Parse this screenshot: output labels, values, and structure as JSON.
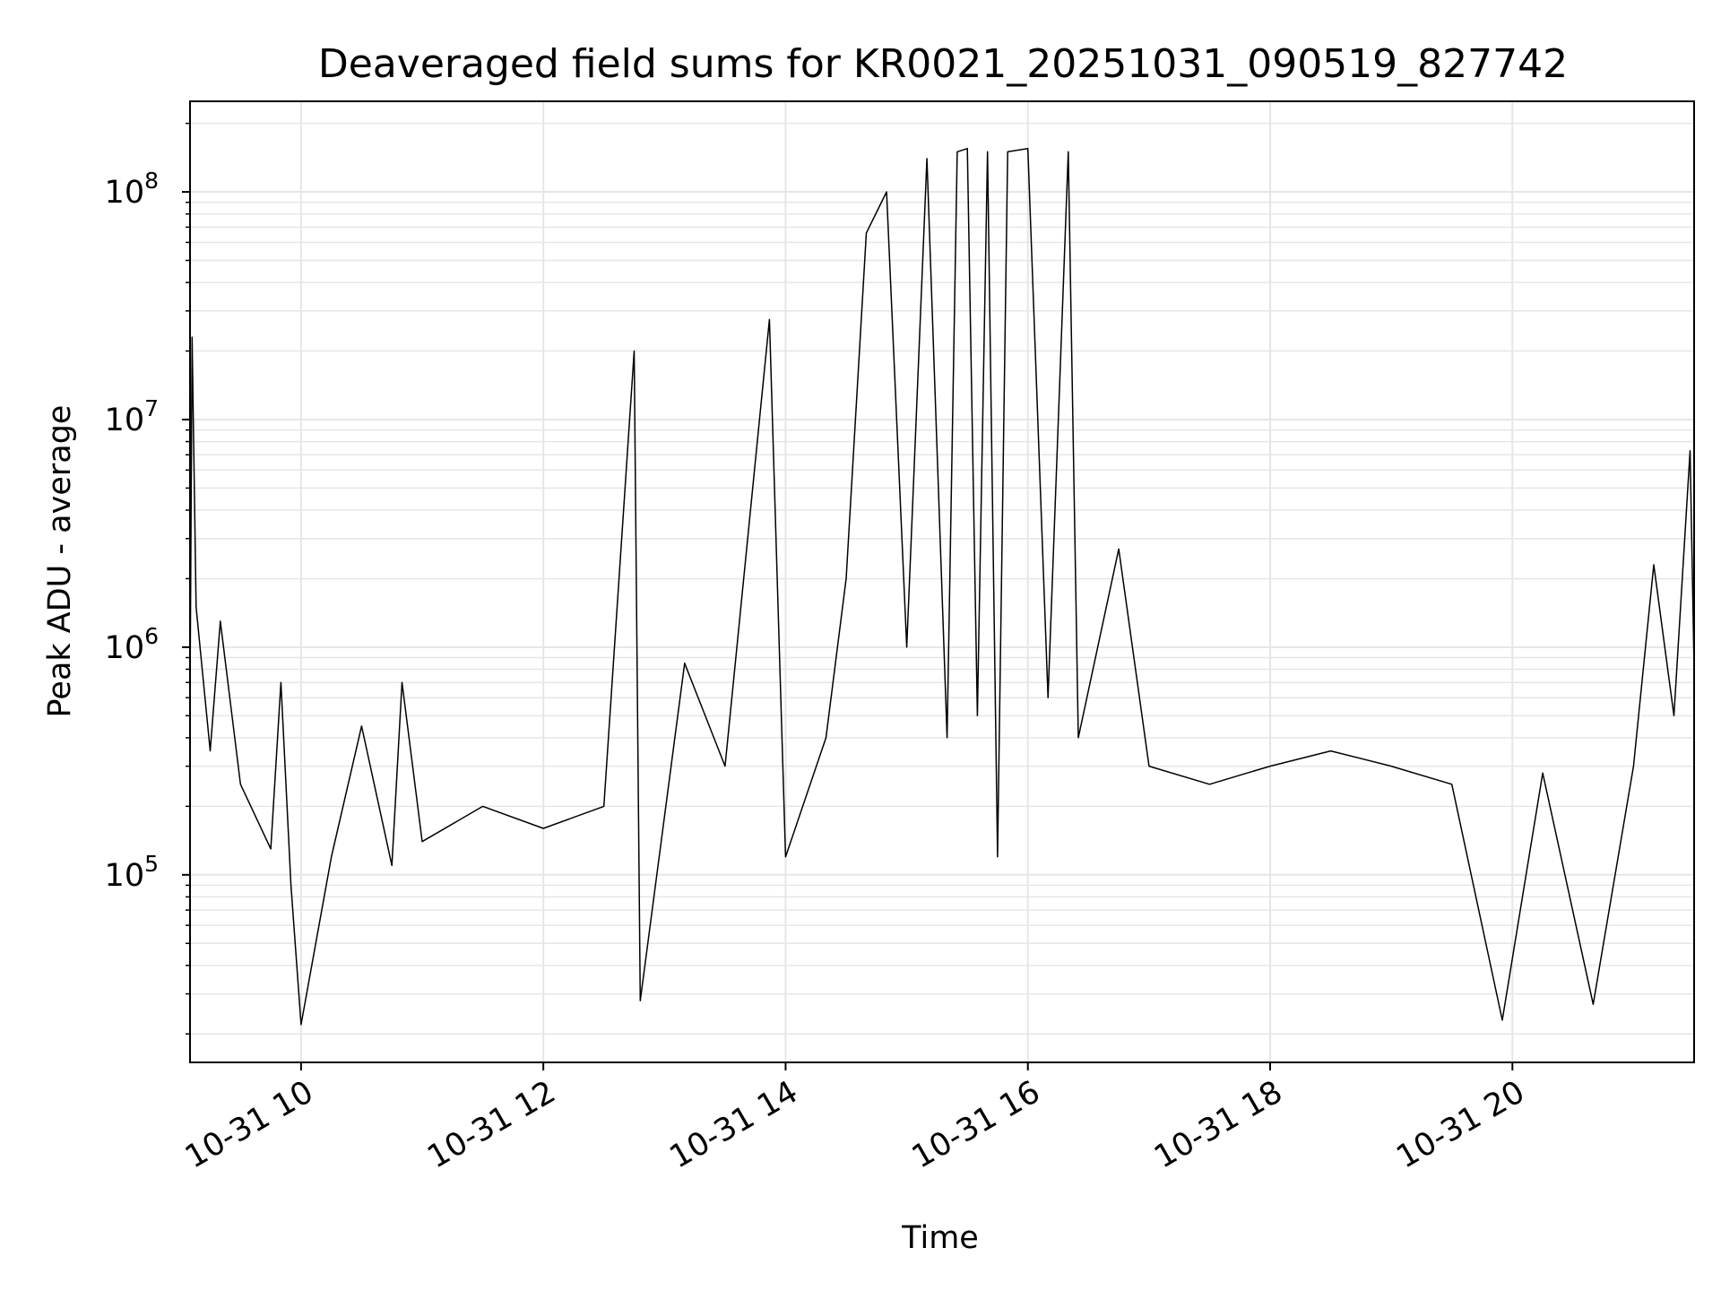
{
  "chart_data": {
    "type": "line",
    "title": "Deaveraged field sums for KR0021_20251031_090519_827742",
    "xlabel": "Time",
    "ylabel": "Peak ADU - average",
    "y_scale": "log",
    "grid": true,
    "grid_minor_y": true,
    "line_color": "#000000",
    "grid_color": "#e6e6e6",
    "x_range": [
      "2025-10-31 09:05",
      "2025-10-31 21:30"
    ],
    "ylim": [
      15000,
      250000000
    ],
    "x_ticks": [
      {
        "time": "2025-10-31 10:00",
        "label": "10-31 10"
      },
      {
        "time": "2025-10-31 12:00",
        "label": "10-31 12"
      },
      {
        "time": "2025-10-31 14:00",
        "label": "10-31 14"
      },
      {
        "time": "2025-10-31 16:00",
        "label": "10-31 16"
      },
      {
        "time": "2025-10-31 18:00",
        "label": "10-31 18"
      },
      {
        "time": "2025-10-31 20:00",
        "label": "10-31 20"
      }
    ],
    "y_ticks": [
      {
        "value": 100000,
        "base": "10",
        "exp": "5"
      },
      {
        "value": 1000000,
        "base": "10",
        "exp": "6"
      },
      {
        "value": 10000000,
        "base": "10",
        "exp": "7"
      },
      {
        "value": 100000000,
        "base": "10",
        "exp": "8"
      }
    ],
    "series": [
      {
        "points": [
          [
            "2025-10-31 09:05",
            600000
          ],
          [
            "2025-10-31 09:06",
            23000000
          ],
          [
            "2025-10-31 09:08",
            1500000
          ],
          [
            "2025-10-31 09:15",
            350000
          ],
          [
            "2025-10-31 09:20",
            1300000
          ],
          [
            "2025-10-31 09:30",
            250000
          ],
          [
            "2025-10-31 09:45",
            130000
          ],
          [
            "2025-10-31 09:50",
            700000
          ],
          [
            "2025-10-31 09:55",
            90000
          ],
          [
            "2025-10-31 10:00",
            22000
          ],
          [
            "2025-10-31 10:15",
            120000
          ],
          [
            "2025-10-31 10:30",
            450000
          ],
          [
            "2025-10-31 10:45",
            110000
          ],
          [
            "2025-10-31 10:50",
            700000
          ],
          [
            "2025-10-31 11:00",
            140000
          ],
          [
            "2025-10-31 11:30",
            200000
          ],
          [
            "2025-10-31 12:00",
            160000
          ],
          [
            "2025-10-31 12:30",
            200000
          ],
          [
            "2025-10-31 12:45",
            20000000
          ],
          [
            "2025-10-31 12:48",
            28000
          ],
          [
            "2025-10-31 13:10",
            850000
          ],
          [
            "2025-10-31 13:30",
            300000
          ],
          [
            "2025-10-31 13:52",
            27500000
          ],
          [
            "2025-10-31 14:00",
            120000
          ],
          [
            "2025-10-31 14:20",
            400000
          ],
          [
            "2025-10-31 14:30",
            2000000
          ],
          [
            "2025-10-31 14:40",
            66000000
          ],
          [
            "2025-10-31 14:50",
            100000000
          ],
          [
            "2025-10-31 15:00",
            1000000
          ],
          [
            "2025-10-31 15:10",
            140000000
          ],
          [
            "2025-10-31 15:20",
            400000
          ],
          [
            "2025-10-31 15:25",
            150000000
          ],
          [
            "2025-10-31 15:30",
            155000000
          ],
          [
            "2025-10-31 15:35",
            500000
          ],
          [
            "2025-10-31 15:40",
            150000000
          ],
          [
            "2025-10-31 15:45",
            120000
          ],
          [
            "2025-10-31 15:50",
            150000000
          ],
          [
            "2025-10-31 16:00",
            155000000
          ],
          [
            "2025-10-31 16:10",
            600000
          ],
          [
            "2025-10-31 16:20",
            150000000
          ],
          [
            "2025-10-31 16:25",
            400000
          ],
          [
            "2025-10-31 16:45",
            2700000
          ],
          [
            "2025-10-31 17:00",
            300000
          ],
          [
            "2025-10-31 17:30",
            250000
          ],
          [
            "2025-10-31 18:00",
            300000
          ],
          [
            "2025-10-31 18:30",
            350000
          ],
          [
            "2025-10-31 19:00",
            300000
          ],
          [
            "2025-10-31 19:30",
            250000
          ],
          [
            "2025-10-31 19:55",
            23000
          ],
          [
            "2025-10-31 20:15",
            280000
          ],
          [
            "2025-10-31 20:40",
            27000
          ],
          [
            "2025-10-31 21:00",
            300000
          ],
          [
            "2025-10-31 21:10",
            2300000
          ],
          [
            "2025-10-31 21:20",
            500000
          ],
          [
            "2025-10-31 21:28",
            7300000
          ],
          [
            "2025-10-31 21:30",
            800000
          ]
        ]
      }
    ]
  }
}
